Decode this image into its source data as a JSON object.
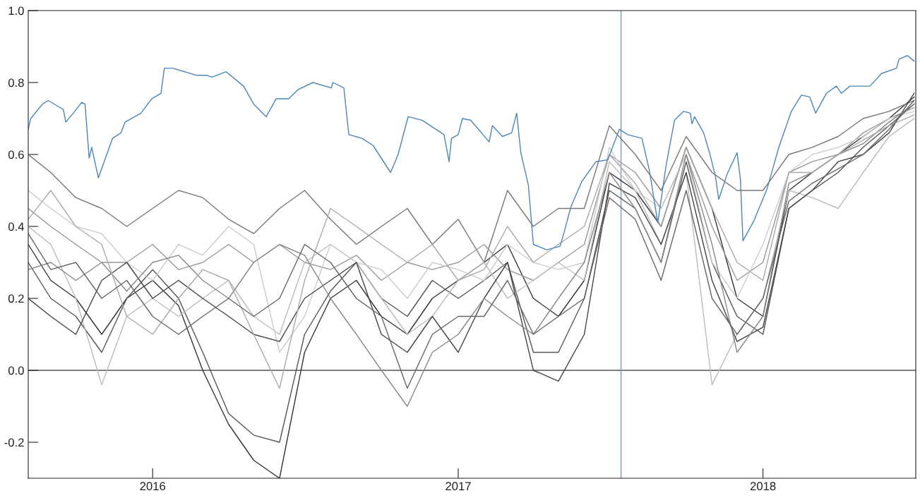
{
  "chart_data": {
    "type": "line",
    "x": [
      "2015-08-05",
      "2015-09-01",
      "2015-10-01",
      "2015-11-01",
      "2015-12-01",
      "2016-01-01",
      "2016-02-01",
      "2016-03-01",
      "2016-04-01",
      "2016-05-01",
      "2016-06-01",
      "2016-07-01",
      "2016-08-01",
      "2016-09-01",
      "2016-10-01",
      "2016-11-01",
      "2016-12-01",
      "2017-01-01",
      "2017-02-01",
      "2017-03-01",
      "2017-04-01",
      "2017-05-01",
      "2017-06-01",
      "2017-07-01",
      "2017-08-01",
      "2017-09-01",
      "2017-10-01",
      "2017-11-01",
      "2017-12-01",
      "2018-01-01",
      "2018-02-01",
      "2018-03-01",
      "2018-04-01",
      "2018-05-01",
      "2018-06-01",
      "2018-07-01"
    ],
    "series": [
      {
        "color": "#333333",
        "values": [
          0.35,
          0.25,
          0.2,
          0.1,
          0.2,
          0.25,
          0.18,
          0.0,
          -0.15,
          -0.25,
          -0.3,
          0.05,
          0.2,
          0.25,
          0.15,
          0.1,
          0.2,
          0.25,
          0.3,
          0.35,
          0.2,
          0.15,
          0.25,
          0.55,
          0.5,
          0.4,
          0.62,
          0.45,
          0.2,
          0.15,
          0.5,
          0.55,
          0.6,
          0.65,
          0.7,
          0.76
        ]
      },
      {
        "color": "#555555",
        "values": [
          0.3,
          0.2,
          0.15,
          0.05,
          0.2,
          0.28,
          0.2,
          0.05,
          -0.12,
          -0.18,
          -0.2,
          0.1,
          0.22,
          0.3,
          0.2,
          0.15,
          0.25,
          0.2,
          0.25,
          0.3,
          0.05,
          0.05,
          0.2,
          0.5,
          0.45,
          0.3,
          0.58,
          0.3,
          0.15,
          0.1,
          0.45,
          0.5,
          0.55,
          0.62,
          0.68,
          0.74
        ]
      },
      {
        "color": "#777777",
        "values": [
          0.6,
          0.55,
          0.48,
          0.45,
          0.4,
          0.45,
          0.5,
          0.48,
          0.42,
          0.38,
          0.45,
          0.5,
          0.42,
          0.35,
          0.4,
          0.45,
          0.35,
          0.42,
          0.3,
          0.5,
          0.4,
          0.45,
          0.45,
          0.68,
          0.6,
          0.5,
          0.65,
          0.55,
          0.5,
          0.5,
          0.6,
          0.62,
          0.65,
          0.7,
          0.72,
          0.75
        ]
      },
      {
        "color": "#999999",
        "values": [
          0.45,
          0.4,
          0.35,
          0.3,
          0.3,
          0.35,
          0.28,
          0.3,
          0.35,
          0.3,
          0.35,
          0.3,
          0.28,
          0.32,
          0.25,
          0.3,
          0.28,
          0.3,
          0.35,
          0.28,
          0.25,
          0.3,
          0.35,
          0.6,
          0.55,
          0.45,
          0.6,
          0.4,
          0.25,
          0.3,
          0.55,
          0.58,
          0.6,
          0.66,
          0.7,
          0.73
        ]
      },
      {
        "color": "#bbbbbb",
        "values": [
          0.4,
          0.35,
          0.2,
          -0.04,
          0.15,
          0.2,
          0.15,
          0.2,
          0.25,
          0.15,
          0.1,
          0.3,
          0.35,
          0.3,
          0.2,
          0.1,
          0.15,
          0.25,
          0.3,
          0.2,
          0.25,
          0.3,
          0.25,
          0.58,
          0.5,
          0.35,
          0.55,
          -0.04,
          0.1,
          0.2,
          0.5,
          0.48,
          0.45,
          0.55,
          0.65,
          0.7
        ]
      },
      {
        "color": "#cccccc",
        "values": [
          0.5,
          0.45,
          0.4,
          0.38,
          0.3,
          0.25,
          0.35,
          0.32,
          0.4,
          0.35,
          0.05,
          0.15,
          0.35,
          0.3,
          0.28,
          0.2,
          0.3,
          0.28,
          0.25,
          0.35,
          0.3,
          0.28,
          0.3,
          0.62,
          0.5,
          0.45,
          0.6,
          0.3,
          0.2,
          0.35,
          0.55,
          0.6,
          0.62,
          0.65,
          0.7,
          0.72
        ]
      },
      {
        "color": "#444444",
        "values": [
          0.2,
          0.15,
          0.1,
          0.25,
          0.3,
          0.2,
          0.25,
          0.2,
          0.15,
          0.1,
          0.08,
          0.2,
          0.25,
          0.3,
          0.1,
          0.05,
          0.15,
          0.05,
          0.2,
          0.3,
          0.0,
          -0.03,
          0.1,
          0.52,
          0.48,
          0.35,
          0.55,
          0.25,
          0.08,
          0.12,
          0.45,
          0.5,
          0.58,
          0.6,
          0.66,
          0.77
        ]
      },
      {
        "color": "#888888",
        "values": [
          0.28,
          0.3,
          0.25,
          0.3,
          0.22,
          0.3,
          0.32,
          0.25,
          0.2,
          0.3,
          0.35,
          0.32,
          0.2,
          0.1,
          0.0,
          -0.1,
          0.05,
          0.1,
          0.2,
          0.15,
          0.1,
          0.2,
          0.3,
          0.55,
          0.45,
          0.3,
          0.6,
          0.35,
          0.05,
          0.15,
          0.52,
          0.55,
          0.6,
          0.63,
          0.69,
          0.74
        ]
      },
      {
        "color": "#aaaaaa",
        "values": [
          0.42,
          0.5,
          0.4,
          0.35,
          0.15,
          0.1,
          0.2,
          0.28,
          0.25,
          0.1,
          -0.05,
          0.25,
          0.45,
          0.4,
          0.35,
          0.3,
          0.35,
          0.25,
          0.28,
          0.4,
          0.3,
          0.35,
          0.4,
          0.6,
          0.52,
          0.4,
          0.62,
          0.45,
          0.3,
          0.25,
          0.55,
          0.55,
          0.6,
          0.64,
          0.68,
          0.71
        ]
      },
      {
        "color": "#666666",
        "values": [
          0.38,
          0.28,
          0.3,
          0.2,
          0.25,
          0.15,
          0.1,
          0.15,
          0.2,
          0.15,
          0.2,
          0.35,
          0.3,
          0.2,
          0.15,
          -0.05,
          0.1,
          0.15,
          0.15,
          0.25,
          0.1,
          0.15,
          0.2,
          0.48,
          0.42,
          0.25,
          0.5,
          0.2,
          0.1,
          0.2,
          0.47,
          0.52,
          0.56,
          0.6,
          0.67,
          0.75
        ]
      },
      {
        "color": "#4a86b8",
        "x": [
          "2015-08-05",
          "2015-08-08",
          "2015-08-22",
          "2015-08-29",
          "2015-09-16",
          "2015-09-19",
          "2015-09-28",
          "2015-10-08",
          "2015-10-12",
          "2015-10-17",
          "2015-10-20",
          "2015-10-28",
          "2015-11-14",
          "2015-11-24",
          "2015-11-29",
          "2015-12-18",
          "2015-12-31",
          "2016-01-11",
          "2016-01-15",
          "2016-01-25",
          "2016-02-23",
          "2016-03-06",
          "2016-03-12",
          "2016-03-29",
          "2016-04-19",
          "2016-05-01",
          "2016-05-16",
          "2016-05-28",
          "2016-06-12",
          "2016-06-23",
          "2016-07-11",
          "2016-08-02",
          "2016-08-04",
          "2016-08-17",
          "2016-08-23",
          "2016-09-08",
          "2016-09-21",
          "2016-10-12",
          "2016-10-21",
          "2016-11-02",
          "2016-11-19",
          "2016-12-15",
          "2016-12-21",
          "2016-12-24",
          "2017-01-01",
          "2017-01-06",
          "2017-01-16",
          "2017-02-07",
          "2017-02-11",
          "2017-02-23",
          "2017-03-06",
          "2017-03-12",
          "2017-03-17",
          "2017-03-26",
          "2017-04-01",
          "2017-04-17",
          "2017-05-03",
          "2017-05-08",
          "2017-05-16",
          "2017-05-29",
          "2017-06-15",
          "2017-06-29",
          "2017-07-13",
          "2017-07-23",
          "2017-08-09",
          "2017-08-18",
          "2017-08-28",
          "2017-09-07",
          "2017-09-17",
          "2017-09-28",
          "2017-10-06",
          "2017-10-08",
          "2017-10-11",
          "2017-10-22",
          "2017-10-29",
          "2017-11-05",
          "2017-11-09",
          "2017-11-19",
          "2017-12-01",
          "2017-12-05",
          "2017-12-08",
          "2017-12-21",
          "2018-01-06",
          "2018-01-20",
          "2018-02-04",
          "2018-02-16",
          "2018-02-26",
          "2018-03-05",
          "2018-03-18",
          "2018-03-30",
          "2018-04-05",
          "2018-04-15",
          "2018-04-26",
          "2018-05-09",
          "2018-05-23",
          "2018-06-10",
          "2018-06-13",
          "2018-06-23",
          "2018-07-01"
        ],
        "values": [
          0.67,
          0.7,
          0.74,
          0.75,
          0.725,
          0.69,
          0.715,
          0.745,
          0.74,
          0.59,
          0.62,
          0.535,
          0.645,
          0.66,
          0.69,
          0.715,
          0.755,
          0.77,
          0.84,
          0.84,
          0.82,
          0.82,
          0.815,
          0.83,
          0.79,
          0.74,
          0.705,
          0.755,
          0.755,
          0.78,
          0.8,
          0.785,
          0.8,
          0.785,
          0.655,
          0.645,
          0.625,
          0.55,
          0.6,
          0.705,
          0.695,
          0.655,
          0.58,
          0.645,
          0.655,
          0.7,
          0.695,
          0.635,
          0.68,
          0.65,
          0.66,
          0.715,
          0.605,
          0.515,
          0.35,
          0.335,
          0.345,
          0.385,
          0.455,
          0.525,
          0.58,
          0.585,
          0.67,
          0.655,
          0.645,
          0.555,
          0.41,
          0.57,
          0.695,
          0.72,
          0.715,
          0.685,
          0.705,
          0.66,
          0.605,
          0.54,
          0.475,
          0.545,
          0.605,
          0.53,
          0.36,
          0.415,
          0.505,
          0.62,
          0.72,
          0.765,
          0.76,
          0.715,
          0.77,
          0.79,
          0.77,
          0.79,
          0.79,
          0.79,
          0.825,
          0.84,
          0.865,
          0.875,
          0.86
        ]
      }
    ],
    "xlim": [
      "2015-08-05",
      "2018-07-03"
    ],
    "ylim": [
      -0.3,
      1.0
    ],
    "xticks": [
      {
        "value": "2016-01-01",
        "label": "2016"
      },
      {
        "value": "2017-01-01",
        "label": "2017"
      },
      {
        "value": "2018-01-01",
        "label": "2018"
      }
    ],
    "yticks": [
      {
        "value": -0.2,
        "label": "-0.2"
      },
      {
        "value": 0,
        "label": "0.0"
      },
      {
        "value": 0.2,
        "label": "0.2"
      },
      {
        "value": 0.4,
        "label": "0.4"
      },
      {
        "value": 0.6,
        "label": "0.6"
      },
      {
        "value": 0.8,
        "label": "0.8"
      },
      {
        "value": 1.0,
        "label": "1.0"
      }
    ],
    "ref_lines": [
      {
        "axis": "y",
        "value": 0,
        "color": "#555555"
      },
      {
        "axis": "x",
        "value": "2017-07-15",
        "color": "#7d99b5"
      }
    ],
    "grid": false,
    "legend": false
  }
}
